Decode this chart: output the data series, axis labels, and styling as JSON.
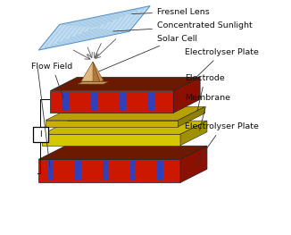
{
  "background_color": "#ffffff",
  "labels": {
    "fresnel_lens": "Fresnel Lens",
    "concentrated_sunlight": "Concentrated Sunlight",
    "solar_cell": "Solar Cell",
    "flow_field": "Flow Field",
    "electrolyser_plate_top": "Electrolyser Plate",
    "electrode": "Electrode",
    "membrane": "Membrane",
    "electrolyser_plate_bottom": "Electrolyser Plate"
  },
  "figsize": [
    3.26,
    2.63
  ],
  "dpi": 100
}
